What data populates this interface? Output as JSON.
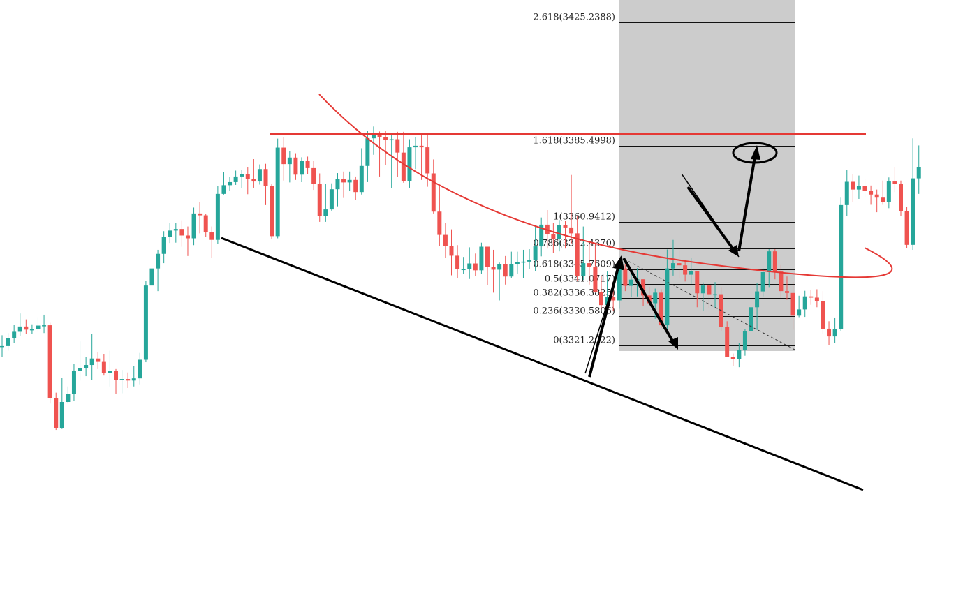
{
  "chart_data": {
    "type": "candlestick",
    "colors": {
      "up": "#26a69a",
      "down": "#ef5350",
      "resistance": "#e53935",
      "trendline": "#000000",
      "fib_zone": "#cccccc",
      "crosshair": "#26a69a"
    },
    "fibonacci": {
      "levels": [
        {
          "label": "2.618(3425.2388)",
          "price": 3425.2388
        },
        {
          "label": "1.618(3385.4998)",
          "price": 3385.4998
        },
        {
          "label": "1(3360.9412)",
          "price": 3360.9412
        },
        {
          "label": "0.786(3352.4370)",
          "price": 3352.437
        },
        {
          "label": "0.618(3345.7609)",
          "price": 3345.7609
        },
        {
          "label": "0.5(3341.0717)",
          "price": 3341.0717
        },
        {
          "label": "0.382(3336.3825)",
          "price": 3336.3825
        },
        {
          "label": "0.236(3330.5806)",
          "price": 3330.5806
        },
        {
          "label": "0(3321.2022)",
          "price": 3321.2022
        }
      ]
    },
    "resistance_price": 3389.2,
    "crosshair_price": 3379.3,
    "candles": [
      [
        3320.8,
        3321.0,
        3324.5,
        3317.5
      ],
      [
        3321.0,
        3323.5,
        3325.2,
        3319.5
      ],
      [
        3323.5,
        3325.6,
        3327.8,
        3322.0
      ],
      [
        3325.6,
        3327.3,
        3331.5,
        3324.2
      ],
      [
        3327.3,
        3326.3,
        3329.6,
        3324.8
      ],
      [
        3326.3,
        3326.4,
        3328.0,
        3325.0
      ],
      [
        3326.4,
        3327.6,
        3330.3,
        3325.5
      ],
      [
        3327.6,
        3327.7,
        3331.1,
        3325.2
      ],
      [
        3327.7,
        3304.3,
        3328.5,
        3302.5
      ],
      [
        3304.3,
        3294.5,
        3306.0,
        3294.0
      ],
      [
        3294.5,
        3303.0,
        3310.8,
        3294.3
      ],
      [
        3303.0,
        3305.6,
        3308.0,
        3302.5
      ],
      [
        3305.6,
        3312.9,
        3315.3,
        3303.3
      ],
      [
        3312.9,
        3313.8,
        3322.5,
        3309.9
      ],
      [
        3313.8,
        3314.9,
        3317.5,
        3311.3
      ],
      [
        3314.9,
        3317.0,
        3325.0,
        3310.0
      ],
      [
        3317.0,
        3315.9,
        3319.0,
        3313.6
      ],
      [
        3315.9,
        3312.4,
        3318.5,
        3311.5
      ],
      [
        3312.4,
        3312.9,
        3319.5,
        3308.0
      ],
      [
        3312.9,
        3310.1,
        3313.6,
        3305.7
      ],
      [
        3310.1,
        3310.4,
        3313.3,
        3305.8
      ],
      [
        3310.4,
        3309.9,
        3312.5,
        3307.5
      ],
      [
        3309.9,
        3310.6,
        3314.5,
        3308.0
      ],
      [
        3310.6,
        3316.6,
        3318.8,
        3308.7
      ],
      [
        3316.6,
        3340.5,
        3342.0,
        3315.8
      ],
      [
        3340.5,
        3346.0,
        3347.8,
        3332.8
      ],
      [
        3346.0,
        3350.7,
        3352.0,
        3338.7
      ],
      [
        3350.7,
        3356.1,
        3358.0,
        3347.7
      ],
      [
        3356.1,
        3358.2,
        3360.6,
        3354.2
      ],
      [
        3358.2,
        3358.7,
        3360.7,
        3354.3
      ],
      [
        3358.7,
        3356.6,
        3361.5,
        3353.0
      ],
      [
        3356.6,
        3355.7,
        3359.5,
        3350.0
      ],
      [
        3355.7,
        3363.7,
        3365.6,
        3353.5
      ],
      [
        3363.7,
        3363.1,
        3367.4,
        3357.3
      ],
      [
        3363.1,
        3357.6,
        3363.6,
        3356.2
      ],
      [
        3357.6,
        3355.2,
        3359.5,
        3349.3
      ],
      [
        3355.2,
        3370.0,
        3372.5,
        3353.8
      ],
      [
        3370.0,
        3372.8,
        3377.0,
        3369.8
      ],
      [
        3372.8,
        3373.8,
        3375.5,
        3371.1
      ],
      [
        3373.8,
        3375.6,
        3377.5,
        3372.9
      ],
      [
        3375.6,
        3376.4,
        3377.7,
        3371.8
      ],
      [
        3376.4,
        3374.7,
        3378.5,
        3369.9
      ],
      [
        3374.7,
        3374.0,
        3381.2,
        3372.0
      ],
      [
        3374.0,
        3378.0,
        3379.5,
        3373.0
      ],
      [
        3378.0,
        3372.6,
        3379.7,
        3366.4
      ],
      [
        3372.6,
        3356.4,
        3373.1,
        3355.4
      ],
      [
        3356.4,
        3384.9,
        3387.8,
        3355.7
      ],
      [
        3384.9,
        3379.6,
        3388.2,
        3374.3
      ],
      [
        3379.6,
        3381.7,
        3383.9,
        3373.7
      ],
      [
        3381.7,
        3376.2,
        3383.1,
        3374.5
      ],
      [
        3376.2,
        3380.7,
        3381.8,
        3373.8
      ],
      [
        3380.7,
        3378.3,
        3382.0,
        3376.3
      ],
      [
        3378.3,
        3373.2,
        3380.7,
        3371.3
      ],
      [
        3373.2,
        3362.8,
        3376.6,
        3361.0
      ],
      [
        3362.8,
        3365.0,
        3373.2,
        3361.0
      ],
      [
        3365.0,
        3371.5,
        3373.4,
        3364.6
      ],
      [
        3371.5,
        3374.8,
        3376.7,
        3366.0
      ],
      [
        3374.8,
        3373.7,
        3377.2,
        3368.7
      ],
      [
        3373.7,
        3374.5,
        3377.2,
        3371.0
      ],
      [
        3374.5,
        3370.6,
        3375.6,
        3368.0
      ],
      [
        3370.6,
        3379.0,
        3384.7,
        3369.8
      ],
      [
        3379.0,
        3387.9,
        3390.3,
        3373.8
      ],
      [
        3387.9,
        3389.2,
        3391.7,
        3382.6
      ],
      [
        3389.2,
        3388.3,
        3390.1,
        3375.6
      ],
      [
        3388.3,
        3387.3,
        3390.4,
        3379.3
      ],
      [
        3387.3,
        3387.6,
        3389.5,
        3371.8
      ],
      [
        3387.6,
        3383.3,
        3390.0,
        3375.4
      ],
      [
        3383.3,
        3374.2,
        3390.0,
        3373.6
      ],
      [
        3374.2,
        3385.0,
        3387.6,
        3372.0
      ],
      [
        3385.0,
        3385.5,
        3388.3,
        3378.0
      ],
      [
        3385.5,
        3385.0,
        3389.6,
        3374.5
      ],
      [
        3385.0,
        3376.6,
        3389.2,
        3372.3
      ],
      [
        3376.6,
        3364.3,
        3381.1,
        3363.7
      ],
      [
        3364.3,
        3356.8,
        3372.6,
        3353.3
      ],
      [
        3356.8,
        3353.3,
        3360.6,
        3349.5
      ],
      [
        3353.3,
        3350.1,
        3358.6,
        3343.8
      ],
      [
        3350.1,
        3345.8,
        3353.5,
        3343.0
      ],
      [
        3345.8,
        3345.8,
        3349.7,
        3344.3
      ],
      [
        3345.8,
        3347.6,
        3352.8,
        3342.6
      ],
      [
        3347.6,
        3345.4,
        3350.8,
        3343.5
      ],
      [
        3345.4,
        3353.0,
        3354.3,
        3344.3
      ],
      [
        3353.0,
        3346.4,
        3353.0,
        3340.6
      ],
      [
        3346.4,
        3345.6,
        3352.0,
        3338.2
      ],
      [
        3345.6,
        3347.3,
        3347.9,
        3335.7
      ],
      [
        3347.3,
        3343.4,
        3350.0,
        3340.8
      ],
      [
        3343.4,
        3347.4,
        3351.4,
        3342.8
      ],
      [
        3347.4,
        3348.1,
        3351.4,
        3344.2
      ],
      [
        3348.1,
        3348.2,
        3352.0,
        3343.0
      ],
      [
        3348.2,
        3348.7,
        3352.2,
        3345.8
      ],
      [
        3348.7,
        3353.1,
        3359.6,
        3345.2
      ],
      [
        3353.1,
        3360.1,
        3362.4,
        3349.9
      ],
      [
        3360.1,
        3357.0,
        3364.8,
        3352.4
      ],
      [
        3357.0,
        3355.4,
        3360.6,
        3351.0
      ],
      [
        3355.4,
        3359.9,
        3361.6,
        3351.5
      ],
      [
        3359.9,
        3359.2,
        3361.4,
        3352.4
      ],
      [
        3359.2,
        3357.3,
        3376.1,
        3353.9
      ],
      [
        3357.3,
        3343.6,
        3363.0,
        3342.0
      ],
      [
        3343.6,
        3347.7,
        3359.5,
        3342.3
      ],
      [
        3347.7,
        3346.5,
        3354.0,
        3340.8
      ],
      [
        3346.5,
        3338.4,
        3353.8,
        3338.8
      ],
      [
        3338.4,
        3334.2,
        3343.5,
        3333.0
      ],
      [
        3334.2,
        3336.9,
        3345.0,
        3334.0
      ],
      [
        3336.9,
        3335.7,
        3339.5,
        3332.4
      ],
      [
        3335.7,
        3346.0,
        3348.1,
        3333.0
      ],
      [
        3346.0,
        3340.4,
        3347.3,
        3338.7
      ],
      [
        3340.4,
        3342.4,
        3345.8,
        3336.7
      ],
      [
        3342.4,
        3342.5,
        3346.1,
        3337.0
      ],
      [
        3342.5,
        3337.3,
        3342.5,
        3333.9
      ],
      [
        3337.3,
        3334.8,
        3340.1,
        3334.0
      ],
      [
        3334.8,
        3338.2,
        3339.5,
        3329.8
      ],
      [
        3338.2,
        3327.7,
        3339.3,
        3326.8
      ],
      [
        3327.7,
        3346.0,
        3352.1,
        3325.0
      ],
      [
        3346.0,
        3347.7,
        3355.2,
        3343.7
      ],
      [
        3347.7,
        3347.0,
        3351.9,
        3343.0
      ],
      [
        3347.0,
        3344.0,
        3348.7,
        3341.8
      ],
      [
        3344.0,
        3345.2,
        3349.5,
        3341.0
      ],
      [
        3345.2,
        3338.0,
        3340.8,
        3333.5
      ],
      [
        3338.0,
        3340.5,
        3341.5,
        3332.4
      ],
      [
        3340.5,
        3337.7,
        3340.5,
        3333.3
      ],
      [
        3337.7,
        3337.7,
        3341.6,
        3333.1
      ],
      [
        3337.7,
        3327.2,
        3340.0,
        3325.8
      ],
      [
        3327.2,
        3317.5,
        3329.0,
        3317.4
      ],
      [
        3317.5,
        3316.8,
        3318.6,
        3314.5
      ],
      [
        3316.8,
        3319.7,
        3322.1,
        3314.2
      ],
      [
        3319.7,
        3325.9,
        3326.5,
        3317.9
      ],
      [
        3325.9,
        3333.5,
        3334.6,
        3323.5
      ],
      [
        3333.5,
        3338.6,
        3341.3,
        3326.2
      ],
      [
        3338.6,
        3344.8,
        3346.0,
        3337.0
      ],
      [
        3344.8,
        3351.5,
        3352.2,
        3340.0
      ],
      [
        3351.5,
        3345.0,
        3352.2,
        3342.5
      ],
      [
        3345.0,
        3338.7,
        3347.1,
        3336.4
      ],
      [
        3338.7,
        3338.1,
        3343.4,
        3335.9
      ],
      [
        3338.1,
        3330.8,
        3341.7,
        3326.3
      ],
      [
        3330.8,
        3332.8,
        3337.2,
        3330.3
      ],
      [
        3332.8,
        3337.0,
        3338.8,
        3330.4
      ],
      [
        3337.0,
        3336.6,
        3339.0,
        3334.3
      ],
      [
        3336.6,
        3335.5,
        3339.3,
        3333.5
      ],
      [
        3335.5,
        3326.6,
        3338.7,
        3325.0
      ],
      [
        3326.6,
        3324.1,
        3329.0,
        3321.2
      ],
      [
        3324.1,
        3326.4,
        3330.2,
        3321.9
      ],
      [
        3326.4,
        3366.4,
        3368.8,
        3325.8
      ],
      [
        3366.4,
        3373.9,
        3377.8,
        3363.0
      ],
      [
        3373.9,
        3371.4,
        3376.4,
        3367.3
      ],
      [
        3371.4,
        3372.6,
        3375.9,
        3368.4
      ],
      [
        3372.6,
        3370.9,
        3374.9,
        3368.8
      ],
      [
        3370.9,
        3369.8,
        3372.7,
        3366.5
      ],
      [
        3369.8,
        3368.8,
        3371.4,
        3364.1
      ],
      [
        3368.8,
        3367.3,
        3374.3,
        3366.5
      ],
      [
        3367.3,
        3374.0,
        3375.3,
        3365.4
      ],
      [
        3374.0,
        3373.2,
        3378.5,
        3370.6
      ],
      [
        3373.2,
        3364.5,
        3374.3,
        3363.0
      ],
      [
        3364.5,
        3353.6,
        3365.9,
        3352.5
      ],
      [
        3353.6,
        3375.0,
        3387.9,
        3352.0
      ],
      [
        3375.0,
        3378.7,
        3385.6,
        3370.0
      ]
    ]
  }
}
